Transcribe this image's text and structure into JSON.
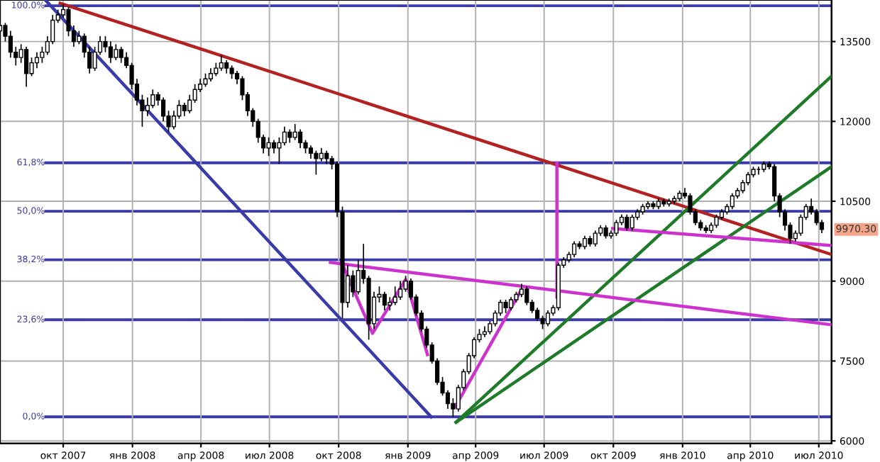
{
  "chart_data": {
    "type": "candlestick",
    "x": [
      "2007-07-09",
      "2007-07-16",
      "2007-07-23",
      "2007-07-30",
      "2007-08-06",
      "2007-08-13",
      "2007-08-20",
      "2007-08-27",
      "2007-09-03",
      "2007-09-10",
      "2007-09-17",
      "2007-09-24",
      "2007-10-01",
      "2007-10-08",
      "2007-10-15",
      "2007-10-22",
      "2007-10-29",
      "2007-11-05",
      "2007-11-12",
      "2007-11-19",
      "2007-11-26",
      "2007-12-03",
      "2007-12-10",
      "2007-12-17",
      "2007-12-24",
      "2007-12-31",
      "2008-01-07",
      "2008-01-14",
      "2008-01-21",
      "2008-01-28",
      "2008-02-04",
      "2008-02-11",
      "2008-02-18",
      "2008-02-25",
      "2008-03-03",
      "2008-03-10",
      "2008-03-17",
      "2008-03-24",
      "2008-03-31",
      "2008-04-07",
      "2008-04-14",
      "2008-04-21",
      "2008-04-28",
      "2008-05-05",
      "2008-05-12",
      "2008-05-19",
      "2008-05-26",
      "2008-06-02",
      "2008-06-09",
      "2008-06-16",
      "2008-06-23",
      "2008-06-30",
      "2008-07-07",
      "2008-07-14",
      "2008-07-21",
      "2008-07-28",
      "2008-08-04",
      "2008-08-11",
      "2008-08-18",
      "2008-08-25",
      "2008-09-01",
      "2008-09-08",
      "2008-09-15",
      "2008-09-22",
      "2008-09-29",
      "2008-10-06",
      "2008-10-13",
      "2008-10-20",
      "2008-10-27",
      "2008-11-03",
      "2008-11-10",
      "2008-11-17",
      "2008-11-24",
      "2008-12-01",
      "2008-12-08",
      "2008-12-15",
      "2008-12-22",
      "2008-12-29",
      "2009-01-05",
      "2009-01-12",
      "2009-01-19",
      "2009-01-26",
      "2009-02-02",
      "2009-02-09",
      "2009-02-16",
      "2009-02-23",
      "2009-03-02",
      "2009-03-09",
      "2009-03-16",
      "2009-03-23",
      "2009-03-30",
      "2009-04-06",
      "2009-04-13",
      "2009-04-20",
      "2009-04-27",
      "2009-05-04",
      "2009-05-11",
      "2009-05-18",
      "2009-05-25",
      "2009-06-01",
      "2009-06-08",
      "2009-06-15",
      "2009-06-22",
      "2009-06-29",
      "2009-07-06",
      "2009-07-13",
      "2009-07-20",
      "2009-07-27",
      "2009-08-03",
      "2009-08-10",
      "2009-08-17",
      "2009-08-24",
      "2009-08-31",
      "2009-09-07",
      "2009-09-14",
      "2009-09-21",
      "2009-09-28",
      "2009-10-05",
      "2009-10-12",
      "2009-10-19",
      "2009-10-26",
      "2009-11-02",
      "2009-11-09",
      "2009-11-16",
      "2009-11-23",
      "2009-11-30",
      "2009-12-07",
      "2009-12-14",
      "2009-12-21",
      "2009-12-28",
      "2010-01-04",
      "2010-01-11",
      "2010-01-18",
      "2010-01-25",
      "2010-02-01",
      "2010-02-08",
      "2010-02-15",
      "2010-02-22",
      "2010-03-01",
      "2010-03-08",
      "2010-03-15",
      "2010-03-22",
      "2010-03-29",
      "2010-04-05",
      "2010-04-12",
      "2010-04-19",
      "2010-04-26",
      "2010-05-03",
      "2010-05-10",
      "2010-05-17",
      "2010-05-24",
      "2010-05-31",
      "2010-06-07",
      "2010-06-14",
      "2010-06-21",
      "2010-06-28",
      "2010-07-05"
    ],
    "ohlc": [
      [
        13700,
        13950,
        13650,
        13800
      ],
      [
        13800,
        13850,
        13500,
        13600
      ],
      [
        13600,
        13700,
        13200,
        13300
      ],
      [
        13300,
        13400,
        13050,
        13200
      ],
      [
        13200,
        13450,
        13100,
        13350
      ],
      [
        13350,
        13400,
        12650,
        12900
      ],
      [
        12900,
        13200,
        12850,
        13100
      ],
      [
        13100,
        13300,
        13000,
        13200
      ],
      [
        13200,
        13400,
        13100,
        13300
      ],
      [
        13300,
        13600,
        13250,
        13500
      ],
      [
        13500,
        14000,
        13450,
        13900
      ],
      [
        13900,
        14100,
        13850,
        14000
      ],
      [
        14000,
        14200,
        13950,
        14100
      ],
      [
        14100,
        14150,
        13600,
        13700
      ],
      [
        13700,
        13800,
        13400,
        13500
      ],
      [
        13500,
        13700,
        13450,
        13600
      ],
      [
        13600,
        13650,
        13200,
        13300
      ],
      [
        13300,
        13400,
        12900,
        13000
      ],
      [
        13000,
        13400,
        12950,
        13300
      ],
      [
        13300,
        13600,
        13250,
        13500
      ],
      [
        13500,
        13600,
        13300,
        13400
      ],
      [
        13400,
        13500,
        13100,
        13200
      ],
      [
        13200,
        13450,
        13150,
        13350
      ],
      [
        13350,
        13400,
        13100,
        13200
      ],
      [
        13200,
        13300,
        13000,
        13050
      ],
      [
        13050,
        13100,
        12600,
        12700
      ],
      [
        12700,
        12800,
        12300,
        12400
      ],
      [
        12400,
        12500,
        11900,
        12200
      ],
      [
        12200,
        12450,
        12100,
        12300
      ],
      [
        12300,
        12600,
        12250,
        12500
      ],
      [
        12500,
        12550,
        12300,
        12400
      ],
      [
        12400,
        12450,
        12000,
        12100
      ],
      [
        12100,
        12200,
        11800,
        11900
      ],
      [
        11900,
        12200,
        11850,
        12100
      ],
      [
        12100,
        12400,
        12050,
        12300
      ],
      [
        12300,
        12350,
        12100,
        12200
      ],
      [
        12200,
        12500,
        12150,
        12400
      ],
      [
        12400,
        12700,
        12350,
        12600
      ],
      [
        12600,
        12800,
        12550,
        12700
      ],
      [
        12700,
        12900,
        12650,
        12800
      ],
      [
        12800,
        13000,
        12750,
        12900
      ],
      [
        12900,
        13100,
        12850,
        13000
      ],
      [
        13000,
        13250,
        12950,
        13100
      ],
      [
        13100,
        13150,
        12900,
        13000
      ],
      [
        13000,
        13050,
        12800,
        12900
      ],
      [
        12900,
        12950,
        12700,
        12800
      ],
      [
        12800,
        12850,
        12400,
        12500
      ],
      [
        12500,
        12550,
        12100,
        12200
      ],
      [
        12200,
        12250,
        11900,
        12000
      ],
      [
        12000,
        12050,
        11600,
        11700
      ],
      [
        11700,
        11750,
        11400,
        11500
      ],
      [
        11500,
        11700,
        11350,
        11600
      ],
      [
        11600,
        11650,
        11400,
        11500
      ],
      [
        11500,
        11700,
        11200,
        11600
      ],
      [
        11600,
        11900,
        11550,
        11800
      ],
      [
        11800,
        11850,
        11600,
        11700
      ],
      [
        11700,
        11950,
        11650,
        11800
      ],
      [
        11800,
        11850,
        11500,
        11600
      ],
      [
        11600,
        11650,
        11400,
        11500
      ],
      [
        11500,
        11550,
        11300,
        11400
      ],
      [
        11400,
        11450,
        11000,
        11300
      ],
      [
        11300,
        11500,
        11250,
        11400
      ],
      [
        11400,
        11450,
        11200,
        11300
      ],
      [
        11300,
        11350,
        11100,
        11200
      ],
      [
        11200,
        11250,
        10200,
        10300
      ],
      [
        10300,
        10400,
        8300,
        8600
      ],
      [
        8600,
        9300,
        8500,
        9100
      ],
      [
        9100,
        9200,
        8700,
        8800
      ],
      [
        8800,
        9400,
        8750,
        9200
      ],
      [
        9200,
        9700,
        8950,
        9050
      ],
      [
        9050,
        9100,
        7900,
        8200
      ],
      [
        8200,
        8800,
        8100,
        8700
      ],
      [
        8700,
        8900,
        8600,
        8750
      ],
      [
        8750,
        8800,
        8450,
        8550
      ],
      [
        8550,
        8700,
        8450,
        8600
      ],
      [
        8600,
        8900,
        8550,
        8700
      ],
      [
        8700,
        9000,
        8650,
        8850
      ],
      [
        8850,
        9100,
        8800,
        9000
      ],
      [
        9000,
        9050,
        8650,
        8700
      ],
      [
        8700,
        8750,
        8350,
        8400
      ],
      [
        8400,
        8450,
        8050,
        8100
      ],
      [
        8100,
        8150,
        7750,
        7800
      ],
      [
        7800,
        7850,
        7450,
        7500
      ],
      [
        7500,
        7550,
        7050,
        7100
      ],
      [
        7100,
        7200,
        6850,
        6900
      ],
      [
        6900,
        6950,
        6600,
        6700
      ],
      [
        6700,
        6800,
        6450,
        6600
      ],
      [
        6600,
        7050,
        6550,
        7000
      ],
      [
        7000,
        7350,
        6950,
        7300
      ],
      [
        7300,
        7650,
        7250,
        7600
      ],
      [
        7600,
        7950,
        7550,
        7900
      ],
      [
        7900,
        8100,
        7850,
        8000
      ],
      [
        8000,
        8150,
        7950,
        8050
      ],
      [
        8050,
        8250,
        8000,
        8200
      ],
      [
        8200,
        8450,
        8150,
        8400
      ],
      [
        8400,
        8650,
        8350,
        8600
      ],
      [
        8600,
        8650,
        8400,
        8500
      ],
      [
        8500,
        8700,
        8450,
        8650
      ],
      [
        8650,
        8800,
        8600,
        8750
      ],
      [
        8750,
        8950,
        8700,
        8850
      ],
      [
        8850,
        8900,
        8550,
        8600
      ],
      [
        8600,
        8650,
        8400,
        8450
      ],
      [
        8450,
        8500,
        8250,
        8300
      ],
      [
        8300,
        8350,
        8100,
        8200
      ],
      [
        8200,
        8450,
        8150,
        8400
      ],
      [
        8400,
        8550,
        8350,
        8500
      ],
      [
        8500,
        9350,
        8450,
        9300
      ],
      [
        9300,
        9450,
        9250,
        9400
      ],
      [
        9400,
        9550,
        9350,
        9500
      ],
      [
        9500,
        9750,
        9450,
        9700
      ],
      [
        9700,
        9750,
        9600,
        9650
      ],
      [
        9650,
        9850,
        9600,
        9800
      ],
      [
        9800,
        9850,
        9650,
        9700
      ],
      [
        9700,
        9950,
        9650,
        9900
      ],
      [
        9900,
        10050,
        9850,
        10000
      ],
      [
        10000,
        10050,
        9800,
        9850
      ],
      [
        9850,
        9950,
        9800,
        9900
      ],
      [
        9900,
        10150,
        9850,
        10100
      ],
      [
        10100,
        10250,
        10050,
        10200
      ],
      [
        10200,
        10250,
        9950,
        10000
      ],
      [
        10000,
        10250,
        9950,
        10200
      ],
      [
        10200,
        10350,
        10150,
        10300
      ],
      [
        10300,
        10450,
        10250,
        10400
      ],
      [
        10400,
        10500,
        10350,
        10450
      ],
      [
        10450,
        10500,
        10350,
        10400
      ],
      [
        10400,
        10550,
        10350,
        10500
      ],
      [
        10500,
        10550,
        10400,
        10450
      ],
      [
        10450,
        10550,
        10400,
        10500
      ],
      [
        10500,
        10600,
        10450,
        10550
      ],
      [
        10550,
        10700,
        10500,
        10650
      ],
      [
        10650,
        10750,
        10550,
        10600
      ],
      [
        10600,
        10650,
        10250,
        10300
      ],
      [
        10300,
        10350,
        10050,
        10100
      ],
      [
        10100,
        10150,
        9950,
        10000
      ],
      [
        10000,
        10050,
        9900,
        9950
      ],
      [
        9950,
        10100,
        9900,
        10050
      ],
      [
        10050,
        10250,
        10000,
        10200
      ],
      [
        10200,
        10350,
        10150,
        10300
      ],
      [
        10300,
        10450,
        10250,
        10400
      ],
      [
        10400,
        10650,
        10350,
        10600
      ],
      [
        10600,
        10750,
        10550,
        10700
      ],
      [
        10700,
        10900,
        10650,
        10850
      ],
      [
        10850,
        11050,
        10800,
        11000
      ],
      [
        11000,
        11150,
        10950,
        11100
      ],
      [
        11100,
        11150,
        11000,
        11100
      ],
      [
        11100,
        11250,
        11050,
        11200
      ],
      [
        11200,
        11250,
        11100,
        11150
      ],
      [
        11150,
        11200,
        10500,
        10600
      ],
      [
        10600,
        10650,
        10200,
        10300
      ],
      [
        10300,
        10350,
        9950,
        10050
      ],
      [
        10050,
        10100,
        9700,
        9800
      ],
      [
        9800,
        9950,
        9750,
        9900
      ],
      [
        9900,
        10250,
        9850,
        10200
      ],
      [
        10200,
        10450,
        10150,
        10400
      ],
      [
        10400,
        10550,
        10250,
        10300
      ],
      [
        10300,
        10350,
        10050,
        10100
      ],
      [
        10100,
        10150,
        9900,
        9970.3
      ]
    ],
    "series": [
      {
        "type": "line",
        "color": "#b22222",
        "x": [
          "2007-09-27",
          "2010-07-18"
        ],
        "values": [
          14220,
          9500
        ]
      },
      {
        "type": "line",
        "color": "#3a3aa8",
        "x": [
          "2007-09-08",
          "2009-02-01"
        ],
        "values": [
          14270,
          6450
        ]
      },
      {
        "type": "line",
        "color": "#1f7a2a",
        "x": [
          "2009-03-06",
          "2010-07-18"
        ],
        "values": [
          6350,
          12850
        ]
      },
      {
        "type": "line",
        "color": "#1f7a2a",
        "x": [
          "2009-03-06",
          "2010-07-18"
        ],
        "values": [
          6350,
          11150
        ]
      },
      {
        "type": "line",
        "color": "#cc33cc",
        "x": [
          "2009-07-18",
          "2009-07-18"
        ],
        "values": [
          8700,
          11220
        ]
      },
      {
        "type": "line",
        "color": "#cc33cc",
        "x": [
          "2008-09-20",
          "2010-07-18"
        ],
        "values": [
          9350,
          8180
        ]
      },
      {
        "type": "line",
        "color": "#cc33cc",
        "x": [
          "2009-09-30",
          "2010-07-18"
        ],
        "values": [
          9990,
          9670
        ]
      },
      {
        "type": "line",
        "color": "#cc33cc",
        "x": [
          "2008-10-05",
          "2008-11-15",
          "2008-12-29",
          "2009-01-27"
        ],
        "values": [
          9350,
          8020,
          9030,
          7620
        ]
      },
      {
        "type": "line",
        "color": "#cc33cc",
        "x": [
          "2009-03-05",
          "2009-05-31"
        ],
        "values": [
          6640,
          8820
        ]
      }
    ],
    "ref_lines": [
      {
        "axis": "y2",
        "value": 100,
        "label": "100.0%",
        "color": "#3a3aa8"
      },
      {
        "axis": "y2",
        "value": 61.8,
        "label": "61,8%",
        "color": "#3a3aa8"
      },
      {
        "axis": "y2",
        "value": 50,
        "label": "50,0%",
        "color": "#3a3aa8"
      },
      {
        "axis": "y2",
        "value": 38.2,
        "label": "38,2%",
        "color": "#3a3aa8"
      },
      {
        "axis": "y2",
        "value": 23.6,
        "label": "23,6%",
        "color": "#3a3aa8"
      },
      {
        "axis": "y2",
        "value": 0,
        "label": "0,0%",
        "color": "#3a3aa8"
      }
    ],
    "annotations": [
      "9970.30"
    ],
    "y2lim": [
      -6.5,
      101.4
    ],
    "xlim": [
      "2007-07-09",
      "2010-07-18"
    ],
    "xticks": [
      {
        "value": "2007-10-01",
        "label": "окт 2007"
      },
      {
        "value": "2008-01-01",
        "label": "янв 2008"
      },
      {
        "value": "2008-04-01",
        "label": "апр 2008"
      },
      {
        "value": "2008-07-01",
        "label": "июл 2008"
      },
      {
        "value": "2008-10-01",
        "label": "окт 2008"
      },
      {
        "value": "2009-01-01",
        "label": "янв 2009"
      },
      {
        "value": "2009-04-01",
        "label": "апр 2009"
      },
      {
        "value": "2009-07-01",
        "label": "июл 2009"
      },
      {
        "value": "2009-10-01",
        "label": "окт 2009"
      },
      {
        "value": "2010-01-01",
        "label": "янв 2010"
      },
      {
        "value": "2010-04-01",
        "label": "апр 2010"
      },
      {
        "value": "2010-07-01",
        "label": "июл 2010"
      }
    ],
    "ylim": [
      5950,
      14280
    ],
    "yticks": [
      6000,
      7500,
      9000,
      10500,
      12000,
      13500
    ],
    "grid": true
  }
}
